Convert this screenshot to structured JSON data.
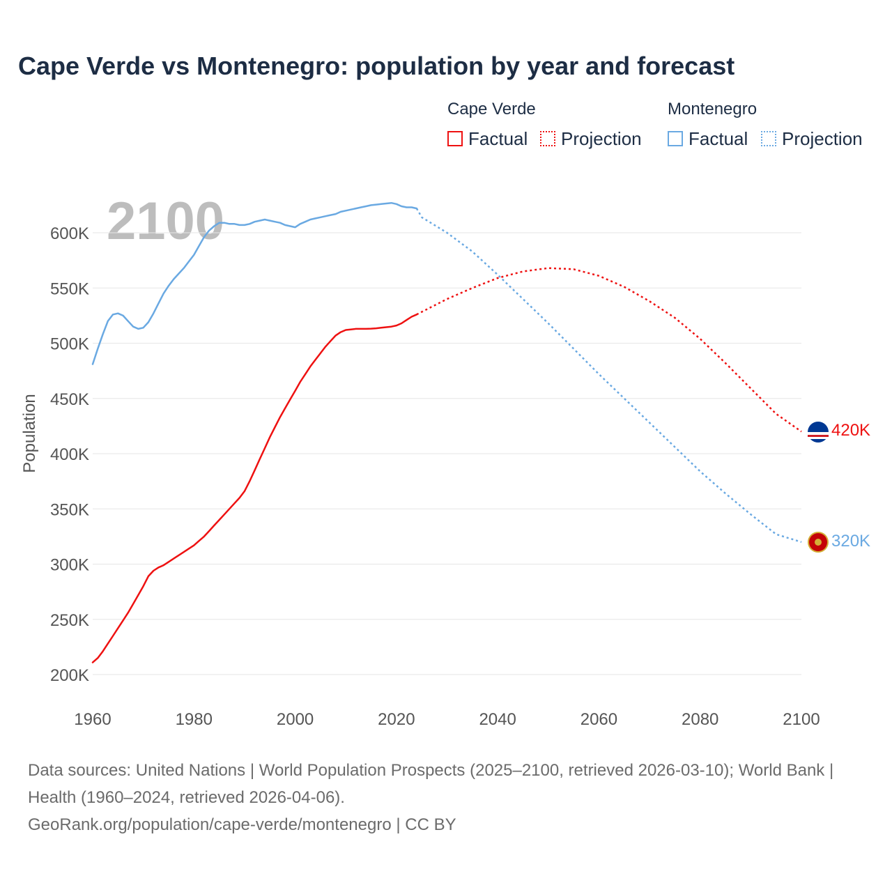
{
  "title": "Cape Verde vs Montenegro: population by year and forecast",
  "legend": {
    "groups": [
      {
        "name": "Cape Verde",
        "color": "#ee1111",
        "factual_label": "Factual",
        "projection_label": "Projection"
      },
      {
        "name": "Montenegro",
        "color": "#6aa9e2",
        "factual_label": "Factual",
        "projection_label": "Projection"
      }
    ]
  },
  "year_watermark": "2100",
  "end_labels": {
    "cape_verde": "420K",
    "montenegro": "320K"
  },
  "footer": {
    "sources": "Data sources: United Nations | World Population Prospects (2025–2100, retrieved 2026-03-10); World Bank | Health (1960–2024, retrieved 2026-04-06).",
    "credit": "GeoRank.org/population/cape-verde/montenegro | CC BY"
  },
  "chart_data": {
    "type": "line",
    "title": "Cape Verde vs Montenegro: population by year and forecast",
    "xlabel": "",
    "ylabel": "Population",
    "xlim": [
      1960,
      2100
    ],
    "ylim": [
      200000,
      620000
    ],
    "x_ticks": [
      1960,
      1980,
      2000,
      2020,
      2040,
      2060,
      2080,
      2100
    ],
    "x_tick_labels": [
      "1960",
      "1980",
      "2000",
      "2020",
      "2040",
      "2060",
      "2080",
      "2100"
    ],
    "y_ticks": [
      200000,
      250000,
      300000,
      350000,
      400000,
      450000,
      500000,
      550000,
      600000
    ],
    "y_tick_labels": [
      "200K",
      "250K",
      "300K",
      "350K",
      "400K",
      "450K",
      "500K",
      "550K",
      "600K"
    ],
    "grid": true,
    "series": [
      {
        "name": "Cape Verde",
        "kind": "Factual",
        "color": "#ee1111",
        "style": "solid",
        "x": [
          1960,
          1961,
          1962,
          1963,
          1964,
          1965,
          1966,
          1967,
          1968,
          1969,
          1970,
          1971,
          1972,
          1973,
          1974,
          1975,
          1976,
          1977,
          1978,
          1979,
          1980,
          1981,
          1982,
          1983,
          1984,
          1985,
          1986,
          1987,
          1988,
          1989,
          1990,
          1991,
          1992,
          1993,
          1994,
          1995,
          1996,
          1997,
          1998,
          1999,
          2000,
          2001,
          2002,
          2003,
          2004,
          2005,
          2006,
          2007,
          2008,
          2009,
          2010,
          2011,
          2012,
          2013,
          2014,
          2015,
          2016,
          2017,
          2018,
          2019,
          2020,
          2021,
          2022,
          2023,
          2024
        ],
        "values": [
          211000,
          215000,
          221000,
          228000,
          235000,
          242000,
          249000,
          256000,
          264000,
          272000,
          280000,
          289000,
          294000,
          297000,
          299000,
          302000,
          305000,
          308000,
          311000,
          314000,
          317000,
          321000,
          325000,
          330000,
          335000,
          340000,
          345000,
          350000,
          355000,
          360000,
          366000,
          375000,
          385000,
          395000,
          405000,
          415000,
          424000,
          433000,
          441000,
          449000,
          457000,
          465000,
          472000,
          479000,
          485000,
          491000,
          497000,
          502000,
          507000,
          510000,
          512000,
          512500,
          513000,
          513000,
          513000,
          513200,
          513500,
          514000,
          514500,
          515000,
          516000,
          518000,
          521000,
          524000,
          526000
        ]
      },
      {
        "name": "Cape Verde",
        "kind": "Projection",
        "color": "#ee1111",
        "style": "dotted",
        "x": [
          2024,
          2030,
          2035,
          2040,
          2045,
          2050,
          2055,
          2060,
          2065,
          2070,
          2075,
          2080,
          2085,
          2090,
          2095,
          2100
        ],
        "values": [
          526000,
          540000,
          550000,
          559000,
          565000,
          568000,
          567000,
          561000,
          551000,
          538000,
          523000,
          504000,
          482000,
          459000,
          436000,
          420000
        ]
      },
      {
        "name": "Montenegro",
        "kind": "Factual",
        "color": "#6aa9e2",
        "style": "solid",
        "x": [
          1960,
          1961,
          1962,
          1963,
          1964,
          1965,
          1966,
          1967,
          1968,
          1969,
          1970,
          1971,
          1972,
          1973,
          1974,
          1975,
          1976,
          1977,
          1978,
          1979,
          1980,
          1981,
          1982,
          1983,
          1984,
          1985,
          1986,
          1987,
          1988,
          1989,
          1990,
          1991,
          1992,
          1993,
          1994,
          1995,
          1996,
          1997,
          1998,
          1999,
          2000,
          2001,
          2002,
          2003,
          2004,
          2005,
          2006,
          2007,
          2008,
          2009,
          2010,
          2011,
          2012,
          2013,
          2014,
          2015,
          2016,
          2017,
          2018,
          2019,
          2020,
          2021,
          2022,
          2023,
          2024
        ],
        "values": [
          481000,
          495000,
          508000,
          520000,
          526000,
          527000,
          525000,
          520000,
          515000,
          513000,
          514000,
          519000,
          527000,
          536000,
          545000,
          552000,
          558000,
          563000,
          568000,
          574000,
          580000,
          588000,
          596000,
          602000,
          606000,
          609000,
          609000,
          608000,
          608000,
          607000,
          607000,
          608000,
          610000,
          611000,
          612000,
          611000,
          610000,
          609000,
          607000,
          606000,
          605000,
          608000,
          610000,
          612000,
          613000,
          614000,
          615000,
          616000,
          617000,
          619000,
          620000,
          621000,
          622000,
          623000,
          624000,
          625000,
          625500,
          626000,
          626500,
          627000,
          626000,
          624000,
          623000,
          623000,
          622000
        ]
      },
      {
        "name": "Montenegro",
        "kind": "Projection",
        "color": "#6aa9e2",
        "style": "dotted",
        "x": [
          2024,
          2025,
          2030,
          2035,
          2040,
          2045,
          2050,
          2055,
          2060,
          2065,
          2070,
          2075,
          2080,
          2085,
          2090,
          2095,
          2100
        ],
        "values": [
          622000,
          614000,
          600000,
          583000,
          562000,
          540000,
          518000,
          495000,
          472000,
          450000,
          428000,
          406000,
          384000,
          364000,
          345000,
          327000,
          320000
        ]
      }
    ]
  }
}
